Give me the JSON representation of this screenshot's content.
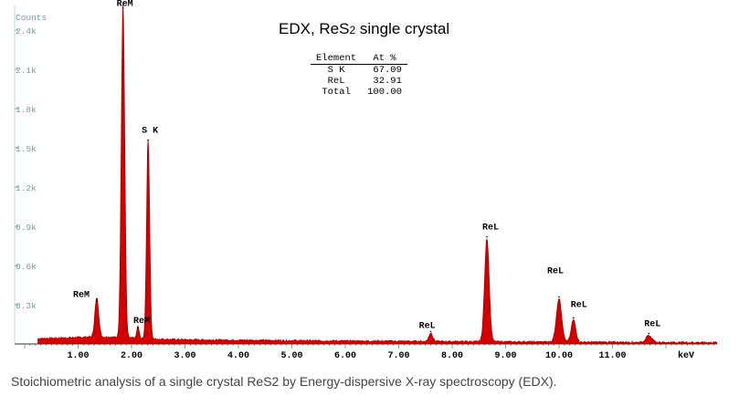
{
  "title": {
    "main": "EDX, ReS",
    "sub": "2",
    "rest": " single crystal"
  },
  "caption": "Stoichiometric analysis of a single crystal ReS2 by Energy-dispersive X-ray spectroscopy (EDX).",
  "table": {
    "headers": [
      "Element",
      "At %"
    ],
    "rows": [
      [
        "S K",
        "67.09"
      ],
      [
        "ReL",
        "32.91"
      ],
      [
        "Total",
        "100.00"
      ]
    ]
  },
  "chart_data": {
    "type": "area",
    "ylabel": "Counts",
    "xlabel": "keV",
    "xlim": [
      0,
      13
    ],
    "ylim": [
      0,
      2600
    ],
    "x_ticks": [
      "1.00",
      "2.00",
      "3.00",
      "4.00",
      "5.00",
      "6.00",
      "7.00",
      "8.00",
      "9.00",
      "10.00",
      "11.00"
    ],
    "x_tick_values": [
      1,
      2,
      3,
      4,
      5,
      6,
      7,
      8,
      9,
      10,
      11
    ],
    "y_ticks": [
      "0.3k",
      "0.6k",
      "0.9k",
      "1.2k",
      "1.5k",
      "1.8k",
      "2.1k",
      "2.4k"
    ],
    "y_tick_values": [
      300,
      600,
      900,
      1200,
      1500,
      1800,
      2100,
      2400
    ],
    "baseline": 40,
    "peaks": [
      {
        "label": "ReM",
        "x": 1.35,
        "y": 330
      },
      {
        "label": "ReM",
        "x": 1.84,
        "y": 2570
      },
      {
        "label": "ReM",
        "x": 2.12,
        "y": 120
      },
      {
        "label": "S K",
        "x": 2.31,
        "y": 1560
      },
      {
        "label": "ReL",
        "x": 7.6,
        "y": 95
      },
      {
        "label": "ReL",
        "x": 8.65,
        "y": 820
      },
      {
        "label": "ReL",
        "x": 10.0,
        "y": 360
      },
      {
        "label": "ReL",
        "x": 10.27,
        "y": 200
      },
      {
        "label": "ReL",
        "x": 11.68,
        "y": 80
      }
    ],
    "colors": {
      "fill": "#d40000",
      "line": "#a00000",
      "grid": "#b8d8d8"
    }
  }
}
